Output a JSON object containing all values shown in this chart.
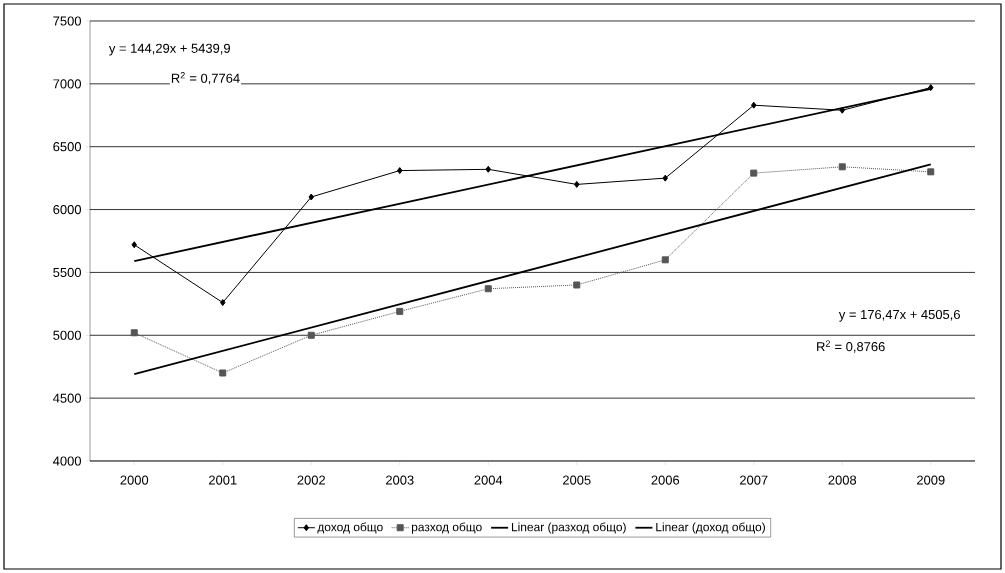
{
  "chart_data": {
    "type": "line",
    "x": [
      2000,
      2001,
      2002,
      2003,
      2004,
      2005,
      2006,
      2007,
      2008,
      2009
    ],
    "series": [
      {
        "name": "доход общо",
        "color": "#000000",
        "marker": "diamond",
        "line_style": "solid",
        "values": [
          5720,
          5260,
          6100,
          6310,
          6320,
          6200,
          6250,
          6830,
          6790,
          6970
        ]
      },
      {
        "name": "разход общо",
        "color": "#555555",
        "marker": "square",
        "line_style": "dotted",
        "values": [
          5020,
          4700,
          5000,
          5190,
          5370,
          5400,
          5600,
          6290,
          6340,
          6300
        ]
      },
      {
        "name": "Linear (разход общо)",
        "type": "line",
        "color": "#000000",
        "marker": "none",
        "line_style": "solid",
        "values": [
          4690,
          null,
          null,
          null,
          null,
          null,
          null,
          null,
          null,
          6360
        ]
      },
      {
        "name": "Linear (доход общо)",
        "type": "line",
        "color": "#000000",
        "marker": "none",
        "line_style": "solid",
        "values": [
          5590,
          null,
          null,
          null,
          null,
          null,
          null,
          null,
          null,
          6960
        ]
      }
    ],
    "xlim": [
      1999.5,
      2009.5
    ],
    "xticks": [
      2000,
      2001,
      2002,
      2003,
      2004,
      2005,
      2006,
      2007,
      2008,
      2009
    ],
    "ylim": [
      4000,
      7500
    ],
    "yticks": [
      4000,
      4500,
      5000,
      5500,
      6000,
      6500,
      7000,
      7500
    ],
    "grid": "y",
    "legend": "bottom",
    "annotations": [
      "y = 144,29x + 5439,9",
      "R$^{2}$ = 0,7764",
      "y = 176,47x + 4505,6",
      "R$^{2}$ = 0,8766"
    ]
  }
}
